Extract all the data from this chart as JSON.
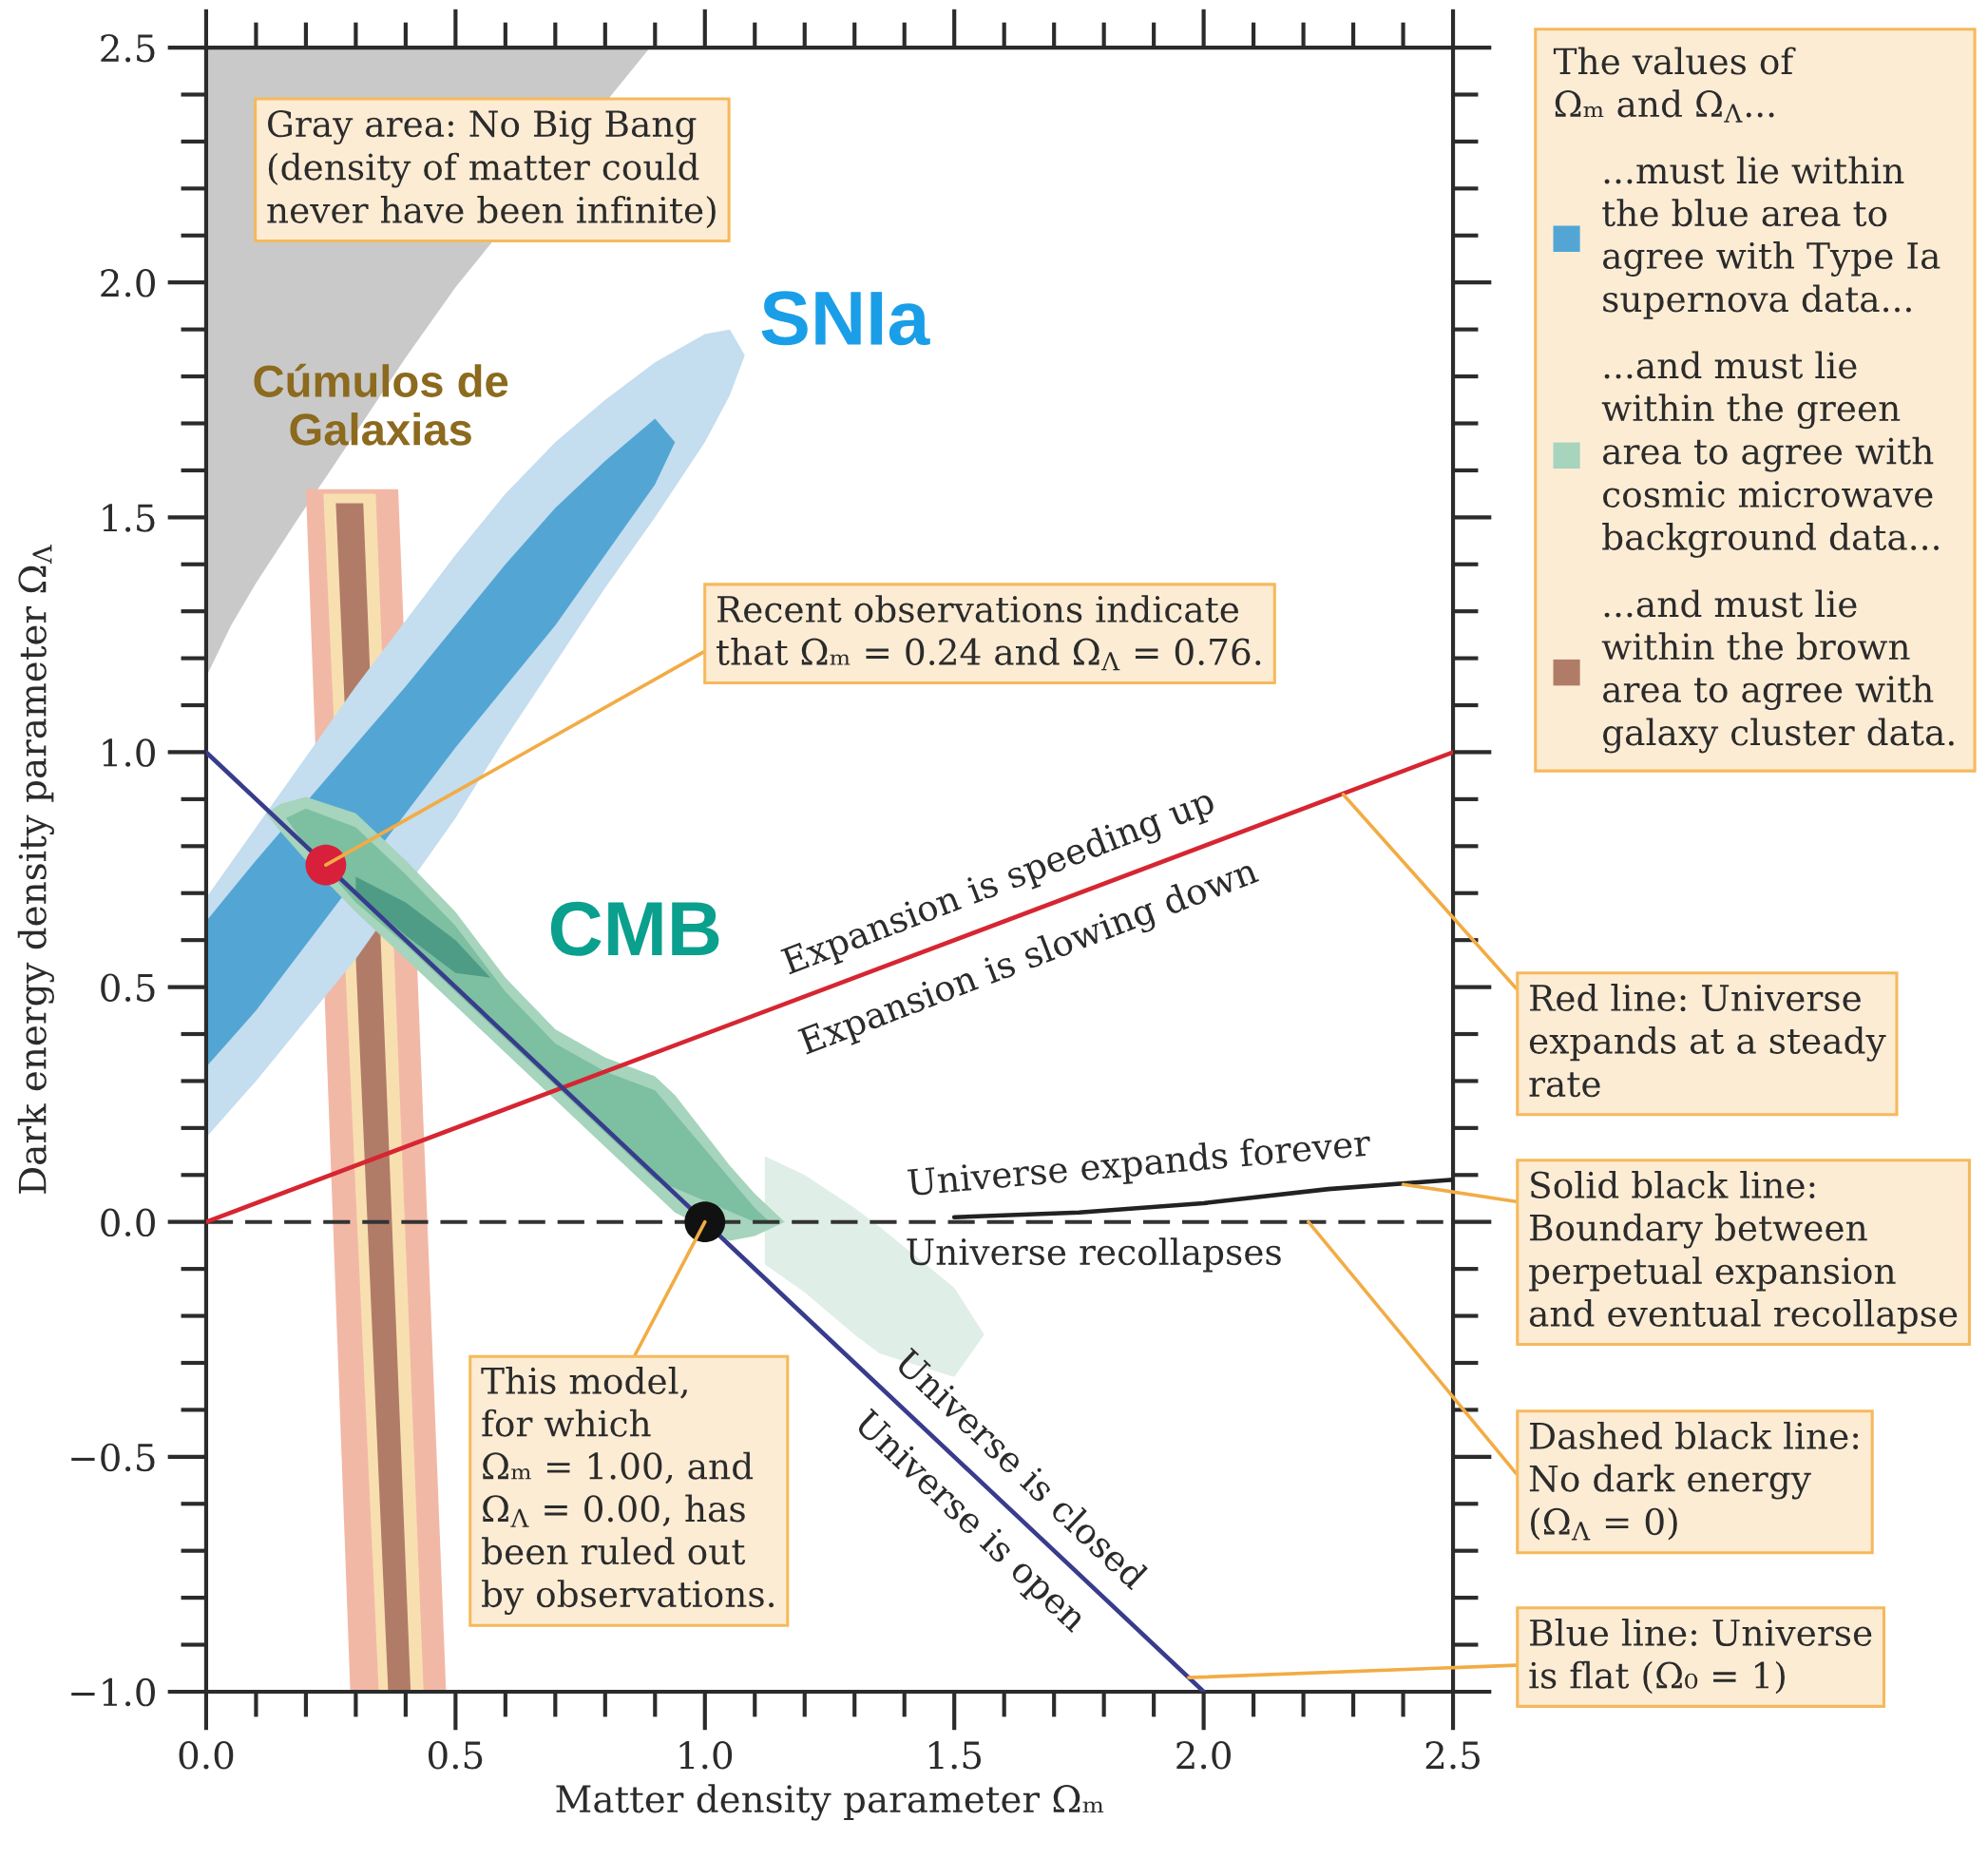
{
  "chart_data": {
    "type": "area",
    "xlabel": "Matter density parameter Ωₘ",
    "ylabel": "Dark energy density parameter Ω$_{Λ}$",
    "xlim": [
      0,
      2.5
    ],
    "ylim": [
      -1.0,
      2.5
    ],
    "xticks": [
      {
        "value": 0,
        "label": "0.0"
      },
      {
        "value": 0.5,
        "label": "0.5"
      },
      {
        "value": 1.0,
        "label": "1.0"
      },
      {
        "value": 1.5,
        "label": "1.5"
      },
      {
        "value": 2.0,
        "label": "2.0"
      },
      {
        "value": 2.5,
        "label": "2.5"
      }
    ],
    "yticks": [
      {
        "value": -1.0,
        "label": "−1.0"
      },
      {
        "value": -0.5,
        "label": "−0.5"
      },
      {
        "value": 0,
        "label": "0.0"
      },
      {
        "value": 0.5,
        "label": "0.5"
      },
      {
        "value": 1.0,
        "label": "1.0"
      },
      {
        "value": 1.5,
        "label": "1.5"
      },
      {
        "value": 2.0,
        "label": "2.0"
      },
      {
        "value": 2.5,
        "label": "2.5"
      }
    ],
    "legend": "right",
    "legend_title": "The values of\nΩₘ and Ω$_{Λ}$...",
    "series": [
      {
        "color": "#c9c9c9",
        "x": [
          0,
          0.05,
          0.1,
          0.186,
          0.3,
          0.4,
          0.5,
          0.89
        ],
        "values": [
          null,
          null,
          null,
          null,
          null,
          null,
          null,
          null
        ],
        "lower": [
          1.16,
          1.27,
          1.36,
          1.5,
          1.68,
          1.84,
          1.99,
          2.5
        ],
        "upper": [
          2.5,
          2.5,
          2.5,
          2.5,
          2.5,
          2.5,
          2.5,
          2.5
        ]
      },
      {
        "color": "#c4ddef",
        "x": [
          0,
          0.1,
          0.2,
          0.3,
          0.5,
          0.6,
          0.7,
          0.8,
          0.9,
          1.0,
          1.05,
          1.08
        ],
        "values": [
          null,
          null,
          null,
          null,
          null,
          null,
          null,
          null,
          null,
          null,
          null,
          null
        ],
        "lower": [
          0.18,
          0.3,
          0.43,
          0.56,
          0.86,
          1.03,
          1.19,
          1.35,
          1.5,
          1.66,
          1.76,
          1.845
        ],
        "upper": [
          0.69,
          0.84,
          0.99,
          1.14,
          1.42,
          1.55,
          1.66,
          1.75,
          1.83,
          1.89,
          1.9,
          1.845
        ]
      },
      {
        "name": "...must lie within\nthe blue area to\nagree with Type Ia\nsupernova data...",
        "color": "#53a6d4",
        "x": [
          0,
          0.1,
          0.4,
          0.5,
          0.6,
          0.7,
          0.8,
          0.9,
          0.94
        ],
        "values": [
          null,
          null,
          null,
          null,
          null,
          null,
          null,
          null,
          null
        ],
        "lower": [
          0.33,
          0.45,
          0.87,
          1.01,
          1.14,
          1.27,
          1.42,
          1.57,
          1.66
        ],
        "upper": [
          0.64,
          0.77,
          1.14,
          1.27,
          1.4,
          1.52,
          1.62,
          1.71,
          1.66
        ]
      },
      {
        "color": "#dfeee7",
        "x": [
          1.12,
          1.2,
          1.3,
          1.35,
          1.5,
          1.56
        ],
        "values": [
          null,
          null,
          null,
          null,
          null,
          null
        ],
        "lower": [
          -0.09,
          -0.15,
          -0.24,
          -0.28,
          -0.33,
          -0.24
        ],
        "upper": [
          0.14,
          0.1,
          0.03,
          -0.01,
          -0.14,
          -0.24
        ]
      },
      {
        "name": "...and must lie\nwithin the green\narea to agree with\ncosmic microwave\nbackground data...",
        "color": "#a6d4bd",
        "x": [
          0.12,
          0.15,
          0.2,
          0.3,
          0.35,
          0.4,
          0.5,
          0.6,
          0.7,
          0.8,
          0.9,
          0.94,
          1.05,
          1.1,
          1.16
        ],
        "values": [
          null,
          null,
          null,
          null,
          null,
          null,
          null,
          null,
          null,
          null,
          null,
          null,
          null,
          null,
          null
        ],
        "lower": [
          0.87,
          0.83,
          0.77,
          0.66,
          0.61,
          0.56,
          0.46,
          0.36,
          0.26,
          0.16,
          0.06,
          0.02,
          -0.04,
          -0.03,
          0.0
        ],
        "upper": [
          0.87,
          0.89,
          0.905,
          0.87,
          0.82,
          0.77,
          0.66,
          0.52,
          0.41,
          0.35,
          0.31,
          0.27,
          0.12,
          0.06,
          0.0
        ]
      },
      {
        "color": "#7dbfa1",
        "x": [
          0.16,
          0.2,
          0.3,
          0.4,
          0.5,
          0.6,
          0.7,
          0.8,
          0.9,
          1.1,
          1.13
        ],
        "values": [
          null,
          null,
          null,
          null,
          null,
          null,
          null,
          null,
          null,
          null,
          null
        ],
        "lower": [
          0.86,
          0.8,
          0.68,
          0.59,
          0.49,
          0.39,
          0.29,
          0.19,
          0.09,
          0.0,
          0.0
        ],
        "upper": [
          0.86,
          0.88,
          0.84,
          0.74,
          0.63,
          0.49,
          0.38,
          0.32,
          0.28,
          0.03,
          0.0
        ]
      },
      {
        "color": "#4f9c86",
        "x": [
          0.3,
          0.4,
          0.5,
          0.57
        ],
        "values": [
          null,
          null,
          null,
          null
        ],
        "lower": [
          0.7,
          0.61,
          0.53,
          0.52
        ],
        "upper": [
          0.735,
          0.68,
          0.6,
          0.52
        ]
      },
      {
        "color": "#f2b8a6",
        "x": [
          0.2,
          0.289,
          0.385,
          0.481
        ],
        "values": [
          null,
          null,
          null,
          null
        ],
        "lower": [
          1.56,
          -1.0,
          -1.0,
          -1.0
        ],
        "upper": [
          1.56,
          1.56,
          1.56,
          -1.0
        ]
      },
      {
        "color": "#f8dfb0",
        "x": [
          0.235,
          0.34,
          0.346,
          0.436
        ],
        "values": [
          null,
          null,
          null,
          null
        ],
        "lower": [
          1.55,
          -0.86,
          -1.0,
          -1.0
        ],
        "upper": [
          1.55,
          1.55,
          1.39,
          -1.0
        ]
      },
      {
        "name": "...and must lie\nwithin the brown\narea to agree with\ngalaxy cluster data.",
        "color": "#b07c68",
        "x": [
          0.26,
          0.315,
          0.365,
          0.41
        ],
        "values": [
          null,
          null,
          null,
          null
        ],
        "lower": [
          1.53,
          0.2,
          -1.0,
          -1.0
        ],
        "upper": [
          1.53,
          1.53,
          0.2,
          -1.0
        ]
      },
      {
        "type": "line",
        "color": "#d62631",
        "x": [
          0,
          2.5
        ],
        "values": [
          0,
          1.0
        ]
      },
      {
        "type": "line",
        "color": "#383c8c",
        "x": [
          0,
          2.0
        ],
        "values": [
          1.0,
          -1.0
        ]
      },
      {
        "type": "line",
        "color": "#222222",
        "x": [
          1.5,
          1.75,
          2.0,
          2.25,
          2.5
        ],
        "values": [
          0.01,
          0.02,
          0.04,
          0.07,
          0.09
        ]
      },
      {
        "type": "scatter",
        "marker": "circle",
        "color": "#d8203a",
        "x": [
          0.24
        ],
        "values": [
          0.76
        ]
      },
      {
        "type": "scatter",
        "marker": "circle",
        "color": "#111111",
        "x": [
          1.0
        ],
        "values": [
          0.0
        ]
      }
    ],
    "ref_lines": [
      {
        "axis": "y",
        "value": 0,
        "color": "#333333",
        "line_style": "dashed"
      }
    ],
    "annotations": [
      "SNIa",
      "Cúmulos de\nGalaxias",
      "CMB",
      "Gray area: No Big Bang\n(density of matter could\nnever have been infinite)",
      {
        "text": "Recent observations indicate\nthat Ωₘ = 0.24 and Ω$_{Λ}$ = 0.76.",
        "x": 0.24,
        "y": 0.76
      },
      "Expansion is speeding up",
      "Expansion is slowing down",
      "Universe expands forever",
      "Universe recollapses",
      "Universe is closed",
      "Universe is open",
      {
        "text": "This model,\nfor which\nΩₘ = 1.00, and\nΩ$_{Λ}$ = 0.00, has\nbeen ruled out\nby observations.",
        "x": 1.0,
        "y": 0.0
      },
      {
        "text": "Red line: Universe\nexpands at a steady\nrate",
        "x": 2.28,
        "y": 0.91
      },
      {
        "text": "Solid black line:\nBoundary between\nperpetual expansion\nand eventual recollapse",
        "x": 2.4,
        "y": 0.08
      },
      {
        "text": "Dashed black line:\nNo dark energy\n(Ω$_{Λ}$ = 0)",
        "x": 2.21,
        "y": 0.0
      },
      {
        "text": "Blue line: Universe\nis flat (Ω₀ = 1)",
        "x": 1.97,
        "y": -0.97
      }
    ]
  }
}
